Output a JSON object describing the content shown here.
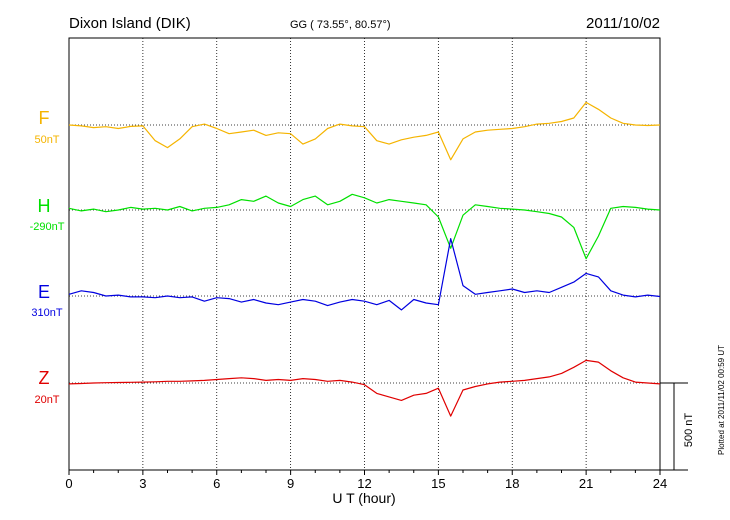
{
  "header": {
    "station": "Dixon Island (DIK)",
    "coords": "GG ( 73.55°,  80.57°)",
    "date": "2011/10/02"
  },
  "footer": {
    "plotted": "Plotted at 2011/11/02 00:59 UT"
  },
  "chart_data": {
    "type": "line",
    "title": "Dixon Island (DIK)",
    "xlabel": "U T (hour)",
    "xlim": [
      0,
      24
    ],
    "xticks": [
      "0",
      "3",
      "6",
      "9",
      "12",
      "15",
      "18",
      "21",
      "24"
    ],
    "grid": true,
    "scale_bar": {
      "label": "500 nT",
      "value": 500
    },
    "series": [
      {
        "name": "F",
        "baseline_label": "50nT",
        "color": "#f5b400",
        "x": [
          0.0,
          0.5,
          1.0,
          1.5,
          2.0,
          2.5,
          3.0,
          3.5,
          4.0,
          4.5,
          5.0,
          5.5,
          6.0,
          6.5,
          7.0,
          7.5,
          8.0,
          8.5,
          9.0,
          9.5,
          10.0,
          10.5,
          11.0,
          11.5,
          12.0,
          12.5,
          13.0,
          13.5,
          14.0,
          14.5,
          15.0,
          15.5,
          16.0,
          16.5,
          17.0,
          17.5,
          18.0,
          18.5,
          19.0,
          19.5,
          20.0,
          20.5,
          21.0,
          21.5,
          22.0,
          22.5,
          23.0,
          23.5,
          24.0
        ],
        "y": [
          0,
          -5,
          -15,
          -10,
          -20,
          -8,
          -5,
          -90,
          -130,
          -80,
          -10,
          5,
          -20,
          -50,
          -40,
          -30,
          -60,
          -45,
          -50,
          -110,
          -80,
          -20,
          5,
          -5,
          -10,
          -90,
          -110,
          -85,
          -70,
          -60,
          -40,
          -200,
          -80,
          -40,
          -30,
          -25,
          -20,
          -10,
          5,
          10,
          20,
          40,
          130,
          90,
          40,
          10,
          0,
          -3,
          0
        ]
      },
      {
        "name": "H",
        "baseline_label": "-290nT",
        "color": "#00e000",
        "x": [
          0.0,
          0.5,
          1.0,
          1.5,
          2.0,
          2.5,
          3.0,
          3.5,
          4.0,
          4.5,
          5.0,
          5.5,
          6.0,
          6.5,
          7.0,
          7.5,
          8.0,
          8.5,
          9.0,
          9.5,
          10.0,
          10.5,
          11.0,
          11.5,
          12.0,
          12.5,
          13.0,
          13.5,
          14.0,
          14.5,
          15.0,
          15.5,
          16.0,
          16.5,
          17.0,
          17.5,
          18.0,
          18.5,
          19.0,
          19.5,
          20.0,
          20.5,
          21.0,
          21.5,
          22.0,
          22.5,
          23.0,
          23.5,
          24.0
        ],
        "y": [
          10,
          -5,
          5,
          -10,
          0,
          15,
          5,
          10,
          0,
          20,
          -5,
          10,
          15,
          30,
          60,
          50,
          80,
          40,
          20,
          60,
          80,
          30,
          50,
          90,
          70,
          40,
          60,
          50,
          40,
          30,
          -40,
          -220,
          -30,
          30,
          20,
          10,
          5,
          0,
          -10,
          -20,
          -40,
          -100,
          -280,
          -150,
          10,
          20,
          15,
          5,
          0
        ]
      },
      {
        "name": "E",
        "baseline_label": "310nT",
        "color": "#0000e0",
        "x": [
          0.0,
          0.5,
          1.0,
          1.5,
          2.0,
          2.5,
          3.0,
          3.5,
          4.0,
          4.5,
          5.0,
          5.5,
          6.0,
          6.5,
          7.0,
          7.5,
          8.0,
          8.5,
          9.0,
          9.5,
          10.0,
          10.5,
          11.0,
          11.5,
          12.0,
          12.5,
          13.0,
          13.5,
          14.0,
          14.5,
          15.0,
          15.5,
          16.0,
          16.5,
          17.0,
          17.5,
          18.0,
          18.5,
          19.0,
          19.5,
          20.0,
          20.5,
          21.0,
          21.5,
          22.0,
          22.5,
          23.0,
          23.5,
          24.0
        ],
        "y": [
          10,
          30,
          20,
          0,
          5,
          -5,
          -5,
          -10,
          0,
          -10,
          -5,
          -30,
          -10,
          -15,
          -35,
          -20,
          -40,
          -50,
          -35,
          -20,
          -30,
          -55,
          -35,
          -20,
          -30,
          -50,
          -25,
          -80,
          -20,
          -40,
          -50,
          330,
          60,
          10,
          20,
          30,
          40,
          20,
          30,
          20,
          50,
          80,
          130,
          110,
          30,
          5,
          -5,
          5,
          -3
        ]
      },
      {
        "name": "Z",
        "baseline_label": "20nT",
        "color": "#e00000",
        "x": [
          0.0,
          0.5,
          1.0,
          1.5,
          2.0,
          2.5,
          3.0,
          3.5,
          4.0,
          4.5,
          5.0,
          5.5,
          6.0,
          6.5,
          7.0,
          7.5,
          8.0,
          8.5,
          9.0,
          9.5,
          10.0,
          10.5,
          11.0,
          11.5,
          12.0,
          12.5,
          13.0,
          13.5,
          14.0,
          14.5,
          15.0,
          15.5,
          16.0,
          16.5,
          17.0,
          17.5,
          18.0,
          18.5,
          19.0,
          19.5,
          20.0,
          20.5,
          21.0,
          21.5,
          22.0,
          22.5,
          23.0,
          23.5,
          24.0
        ],
        "y": [
          -5,
          -3,
          0,
          2,
          3,
          4,
          5,
          7,
          10,
          10,
          12,
          15,
          20,
          25,
          30,
          25,
          15,
          20,
          15,
          25,
          20,
          10,
          15,
          5,
          -10,
          -60,
          -80,
          -100,
          -70,
          -60,
          -30,
          -190,
          -40,
          -20,
          -5,
          5,
          10,
          15,
          25,
          35,
          55,
          90,
          130,
          120,
          70,
          30,
          5,
          0,
          -5
        ]
      }
    ]
  }
}
